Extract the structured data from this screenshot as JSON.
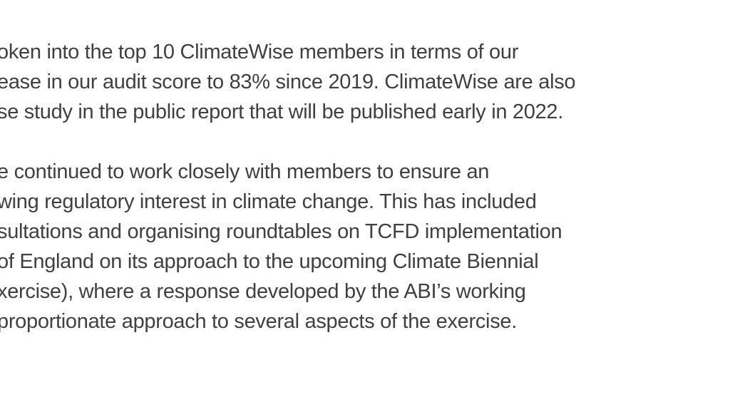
{
  "page": {
    "background_color": "#ffffff",
    "text_color": "#404040"
  },
  "document": {
    "paragraphs": [
      {
        "lines": [
          "oken into the top 10 ClimateWise members in terms of our",
          "ease in our audit score to 83% since 2019. ClimateWise are also",
          "se study in the public report that will be published early in 2022."
        ]
      },
      {
        "lines": [
          "e continued to work closely with members to ensure an",
          "wing regulatory interest in climate change. This has included",
          "sultations and organising roundtables on TCFD implementation",
          "of England on its approach to the upcoming Climate Biennial",
          "xercise), where a response developed by the ABI’s working",
          "proportionate approach to several aspects of the exercise."
        ]
      }
    ]
  }
}
